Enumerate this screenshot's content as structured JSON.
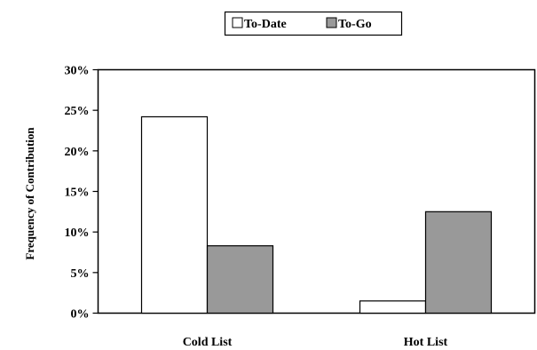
{
  "chart_data": {
    "type": "bar",
    "title": "",
    "xlabel": "",
    "ylabel": "Frequency of Contribution",
    "categories": [
      "Cold List",
      "Hot List"
    ],
    "series": [
      {
        "name": "To-Date",
        "values": [
          0.242,
          0.015
        ],
        "color": "#ffffff"
      },
      {
        "name": "To-Go",
        "values": [
          0.083,
          0.125
        ],
        "color": "#999999"
      }
    ],
    "ylim": [
      0,
      0.3
    ],
    "yticks": [
      0,
      0.05,
      0.1,
      0.15,
      0.2,
      0.25,
      0.3
    ],
    "ytick_labels": [
      "0%",
      "5%",
      "10%",
      "15%",
      "20%",
      "25%",
      "30%"
    ],
    "grid": false,
    "legend_position": "top-center"
  }
}
